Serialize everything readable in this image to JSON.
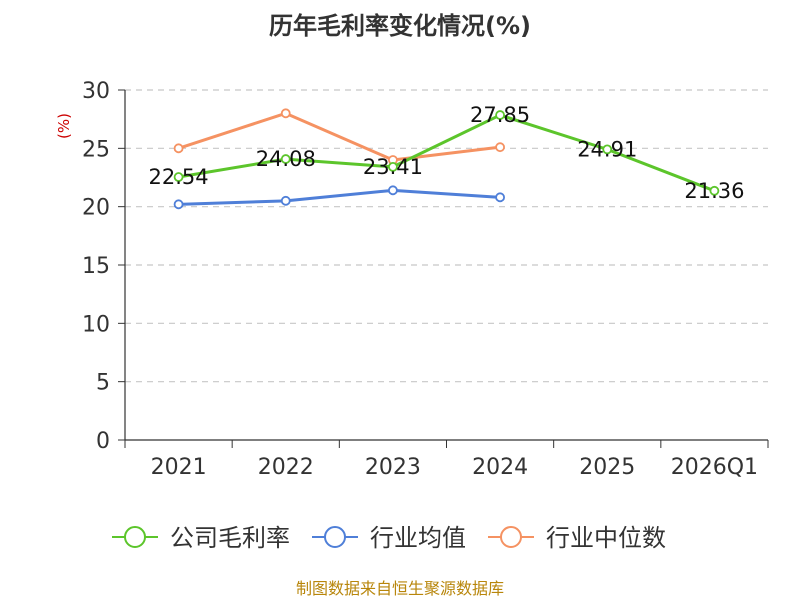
{
  "chart_data": {
    "type": "line",
    "title": "历年毛利率变化情况(%)",
    "ylabel": "(%)",
    "xlabel": "",
    "categories": [
      "2021",
      "2022",
      "2023",
      "2024",
      "2025",
      "2026Q1"
    ],
    "ylim": [
      0,
      30
    ],
    "yticks": [
      0,
      5,
      10,
      15,
      20,
      25,
      30
    ],
    "grid": true,
    "legend_position": "bottom",
    "series": [
      {
        "name": "公司毛利率",
        "color": "#5cc52b",
        "values": [
          22.54,
          24.08,
          23.41,
          27.85,
          24.91,
          21.36
        ],
        "labels": [
          "22.54",
          "24.08",
          "23.41",
          "27.85",
          "24.91",
          "21.36"
        ],
        "show_labels": true
      },
      {
        "name": "行业均值",
        "color": "#4f7fd8",
        "values": [
          20.2,
          20.5,
          21.4,
          20.8,
          null,
          null
        ],
        "show_labels": false
      },
      {
        "name": "行业中位数",
        "color": "#f59262",
        "values": [
          25.0,
          28.0,
          24.0,
          25.1,
          null,
          null
        ],
        "show_labels": false
      }
    ],
    "source": "制图数据来自恒生聚源数据库"
  }
}
